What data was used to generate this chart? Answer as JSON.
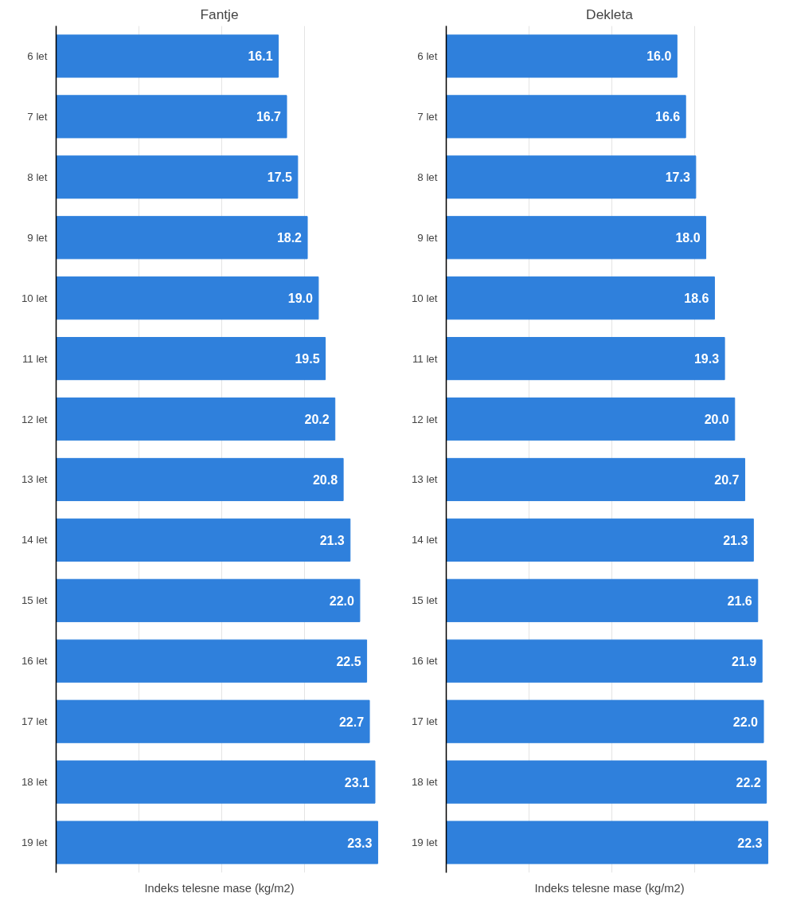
{
  "chart_data": [
    {
      "type": "bar",
      "orientation": "horizontal",
      "title": "Fantje",
      "xlabel": "Indeks telesne mase (kg/m2)",
      "categories": [
        "6 let",
        "7 let",
        "8 let",
        "9 let",
        "10 let",
        "11 let",
        "12 let",
        "13 let",
        "14 let",
        "15 let",
        "16 let",
        "17 let",
        "18 let",
        "19 let"
      ],
      "values": [
        16.1,
        16.7,
        17.5,
        18.2,
        19.0,
        19.5,
        20.2,
        20.8,
        21.3,
        22.0,
        22.5,
        22.7,
        23.1,
        23.3
      ],
      "value_labels": [
        "16.1",
        "16.7",
        "17.5",
        "18.2",
        "19.0",
        "19.5",
        "20.2",
        "20.8",
        "21.3",
        "22.0",
        "22.5",
        "22.7",
        "23.1",
        "23.3"
      ],
      "color": "#2f80dc",
      "xticks": [
        {
          "value": 6,
          "label": null
        },
        {
          "value": 12,
          "label": null
        },
        {
          "value": 18,
          "label": null
        }
      ],
      "grid": "x",
      "tick_labels": "y"
    },
    {
      "type": "bar",
      "orientation": "horizontal",
      "title": "Dekleta",
      "xlabel": "Indeks telesne mase (kg/m2)",
      "categories": [
        "6 let",
        "7 let",
        "8 let",
        "9 let",
        "10 let",
        "11 let",
        "12 let",
        "13 let",
        "14 let",
        "15 let",
        "16 let",
        "17 let",
        "18 let",
        "19 let"
      ],
      "values": [
        16.0,
        16.6,
        17.3,
        18.0,
        18.6,
        19.3,
        20.0,
        20.7,
        21.3,
        21.6,
        21.9,
        22.0,
        22.2,
        22.3
      ],
      "value_labels": [
        "16.0",
        "16.6",
        "17.3",
        "18.0",
        "18.6",
        "19.3",
        "20.0",
        "20.7",
        "21.3",
        "21.6",
        "21.9",
        "22.0",
        "22.2",
        "22.3"
      ],
      "color": "#2f80dc",
      "xticks": [
        {
          "value": 5.75,
          "label": null
        },
        {
          "value": 11.5,
          "label": null
        },
        {
          "value": 17.25,
          "label": null
        }
      ],
      "grid": "x",
      "tick_labels": "y"
    }
  ]
}
